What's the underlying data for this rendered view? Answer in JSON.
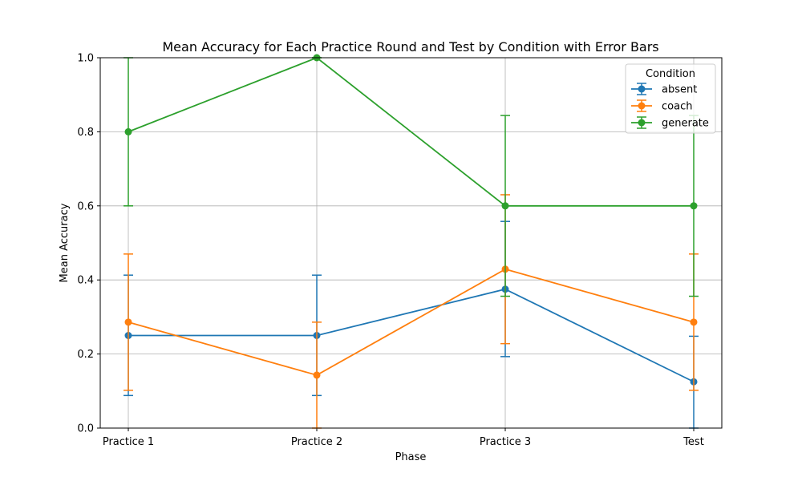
{
  "chart_data": {
    "type": "line",
    "title": "Mean Accuracy for Each Practice Round and Test by Condition with Error Bars",
    "xlabel": "Phase",
    "ylabel": "Mean Accuracy",
    "categories": [
      "Practice 1",
      "Practice 2",
      "Practice 3",
      "Test"
    ],
    "ylim": [
      0,
      1
    ],
    "yticks": [
      "0.0",
      "0.2",
      "0.4",
      "0.6",
      "0.8",
      "1.0"
    ],
    "grid": true,
    "legend": {
      "title": "Condition",
      "placement": "top-right"
    },
    "series": [
      {
        "name": "absent",
        "color": "#1f77b4",
        "values": [
          0.25,
          0.25,
          0.375,
          0.125
        ],
        "err_low": [
          0.088,
          0.088,
          0.193,
          0.0
        ],
        "err_high": [
          0.413,
          0.413,
          0.558,
          0.248
        ]
      },
      {
        "name": "coach",
        "color": "#ff7f0e",
        "values": [
          0.286,
          0.143,
          0.429,
          0.286
        ],
        "err_low": [
          0.102,
          0.0,
          0.228,
          0.102
        ],
        "err_high": [
          0.47,
          0.286,
          0.63,
          0.47
        ]
      },
      {
        "name": "generate",
        "color": "#2ca02c",
        "values": [
          0.8,
          1.0,
          0.6,
          0.6
        ],
        "err_low": [
          0.6,
          1.0,
          0.356,
          0.356
        ],
        "err_high": [
          1.0,
          1.0,
          0.844,
          0.844
        ]
      }
    ]
  }
}
